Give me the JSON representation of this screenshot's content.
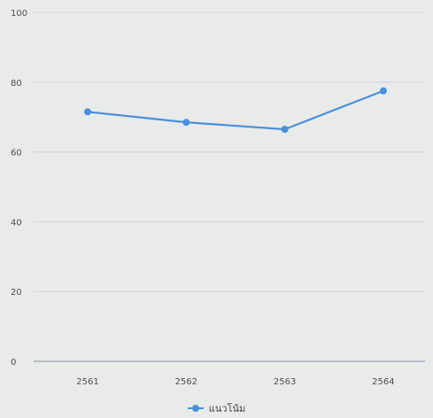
{
  "chart_data": {
    "type": "line",
    "title": "",
    "xlabel": "",
    "ylabel": "",
    "categories": [
      "2561",
      "2562",
      "2563",
      "2564"
    ],
    "series": [
      {
        "name": "แนวโน้ม",
        "values": [
          71.5,
          68.5,
          66.5,
          77.5
        ],
        "color": "#4a90d9"
      }
    ],
    "ylim": [
      0,
      100
    ],
    "yticks": [
      0,
      20,
      40,
      60,
      80,
      100
    ],
    "grid": true,
    "legend": "bottom-center"
  }
}
